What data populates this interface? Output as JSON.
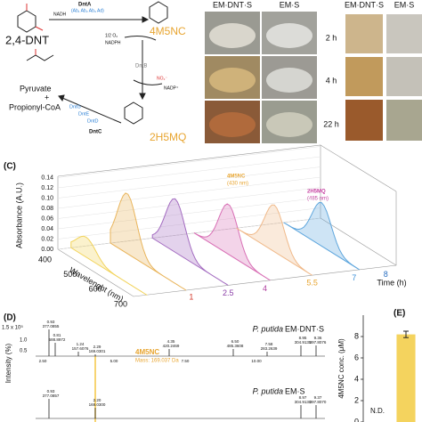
{
  "pathway": {
    "compounds": [
      "2,4-DNT",
      "4M5NC",
      "Pyruvate",
      "+",
      "Propionyl-CoA",
      "2H5MQ"
    ],
    "enzymes": [
      "DntA",
      "DntB",
      "DntG",
      "DntE",
      "DntD",
      "DntC"
    ],
    "subunits": "(Ab₁ Ab₂ Ab₃ Ad)",
    "cofactors": [
      "NADH",
      "1/2 O₂",
      "NADPH",
      "NO₂⁻",
      "NADP⁺"
    ]
  },
  "photos": {
    "columns": [
      "EM·DNT·S",
      "EM·S"
    ],
    "rows": [
      "2 h",
      "4 h",
      "22 h"
    ],
    "swatch_columns": [
      "EM·DNT·S",
      "EM·S"
    ]
  },
  "panel_c": {
    "label": "(C)",
    "y_label": "Absorbance (A.U.)",
    "yticks": [
      "0.00",
      "0.02",
      "0.04",
      "0.06",
      "0.08",
      "0.10",
      "0.12",
      "0.14"
    ],
    "x_label": "Wavelenght (nm)",
    "xticks": [
      "400",
      "500",
      "600",
      "700"
    ],
    "z_label": "Time (h)",
    "zticks": [
      "1",
      "2.5",
      "4",
      "5.5",
      "7",
      "8"
    ],
    "annotations": [
      {
        "name": "4M5NC",
        "detail": "(430 nm)"
      },
      {
        "name": "2H5MQ",
        "detail": "(485 nm)"
      }
    ]
  },
  "panel_d": {
    "label": "(D)",
    "y_label": "Intensity (%)",
    "yticks": [
      "1.5 x 10⁵",
      "1.0",
      "0.5"
    ],
    "xticks": [
      "2.50",
      "5.00",
      "7.50",
      "10.00"
    ],
    "highlight": {
      "name": "4M5NC",
      "mass": "Mass: 169.037 Da"
    },
    "spectra": [
      {
        "species": "P. putida",
        "condition": "EM·DNT·S",
        "peaks": [
          [
            "0.93",
            "377.0855"
          ],
          [
            "0.81",
            "588.8972"
          ],
          [
            "1.24",
            "157.6076"
          ],
          [
            "2.29",
            "169.0301"
          ],
          [
            "4.35",
            "420.2469"
          ],
          [
            "6.50",
            "485.3608"
          ],
          [
            "7.58",
            "283.2639"
          ],
          [
            "8.95",
            "304.9135"
          ],
          [
            "9.36",
            "397.8076"
          ]
        ]
      },
      {
        "species": "P. putida",
        "condition": "EM·S",
        "peaks": [
          [
            "0.93",
            "377.0857"
          ],
          [
            "2.20",
            "169.0300"
          ],
          [
            "8.97",
            "304.9130"
          ],
          [
            "9.37",
            "397.8070"
          ]
        ]
      }
    ]
  },
  "chart_data": {
    "type": "bar",
    "title": "(E)",
    "y_label": "4M5NC conc. (μM)",
    "categories": [
      null,
      null
    ],
    "values": [
      null,
      8.2
    ],
    "errors": [
      null,
      0.3
    ],
    "annotation": "N.D.",
    "color": "#f4d35e",
    "ylim": [
      0,
      10
    ],
    "yticks": [
      0,
      2,
      4,
      6,
      8
    ]
  }
}
